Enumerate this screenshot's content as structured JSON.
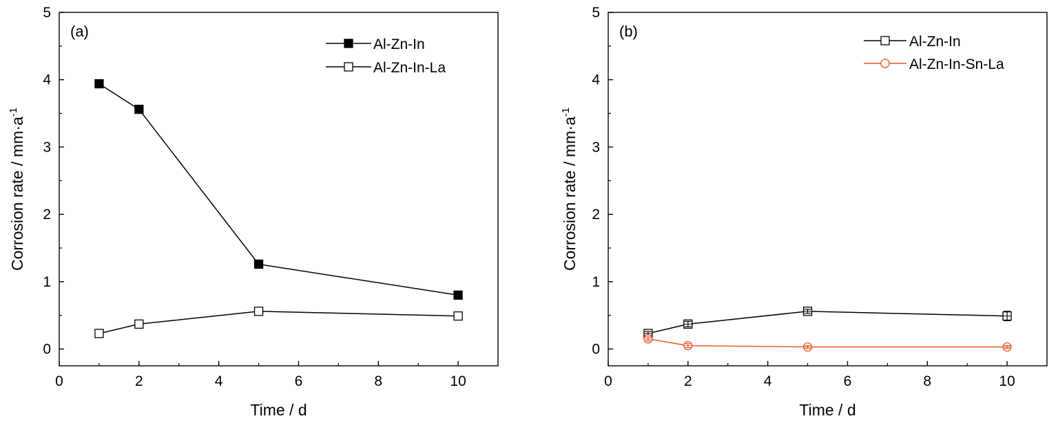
{
  "chart_data": [
    {
      "type": "line",
      "panel_label": "(a)",
      "xlabel": "Time / d",
      "ylabel": "Corrosion rate / mm·a",
      "ylabel_superscript": "-1",
      "xlim": [
        0,
        11
      ],
      "ylim": [
        -0.25,
        5
      ],
      "xticks": [
        "0",
        "2",
        "4",
        "6",
        "8",
        "10"
      ],
      "yticks": [
        "0",
        "1",
        "2",
        "3",
        "4",
        "5"
      ],
      "legend_position": "top-right",
      "series": [
        {
          "name": "Al-Zn-In",
          "marker": "square-filled",
          "color": "#000000",
          "x": [
            1,
            2,
            5,
            10
          ],
          "y": [
            3.94,
            3.56,
            1.26,
            0.8
          ]
        },
        {
          "name": "Al-Zn-In-La",
          "marker": "square-open",
          "color": "#000000",
          "x": [
            1,
            2,
            5,
            10
          ],
          "y": [
            0.23,
            0.37,
            0.56,
            0.49
          ]
        }
      ]
    },
    {
      "type": "line",
      "panel_label": "(b)",
      "xlabel": "Time / d",
      "ylabel": "Corrosion rate / mm·a",
      "ylabel_superscript": "-1",
      "xlim": [
        0,
        11
      ],
      "ylim": [
        -0.25,
        5
      ],
      "xticks": [
        "0",
        "2",
        "4",
        "6",
        "8",
        "10"
      ],
      "yticks": [
        "0",
        "1",
        "2",
        "3",
        "4",
        "5"
      ],
      "legend_position": "top-right",
      "series": [
        {
          "name": "Al-Zn-In",
          "marker": "square-open",
          "color": "#000000",
          "x": [
            1,
            2,
            5,
            10
          ],
          "y": [
            0.23,
            0.37,
            0.56,
            0.49
          ],
          "error": [
            0.03,
            0.04,
            0.03,
            0.07
          ]
        },
        {
          "name": "Al-Zn-In-Sn-La",
          "marker": "circle-open",
          "color": "#e8572a",
          "x": [
            1,
            2,
            5,
            10
          ],
          "y": [
            0.15,
            0.05,
            0.03,
            0.03
          ],
          "error": [
            0.03,
            0.03,
            0.02,
            0.02
          ]
        }
      ]
    }
  ]
}
